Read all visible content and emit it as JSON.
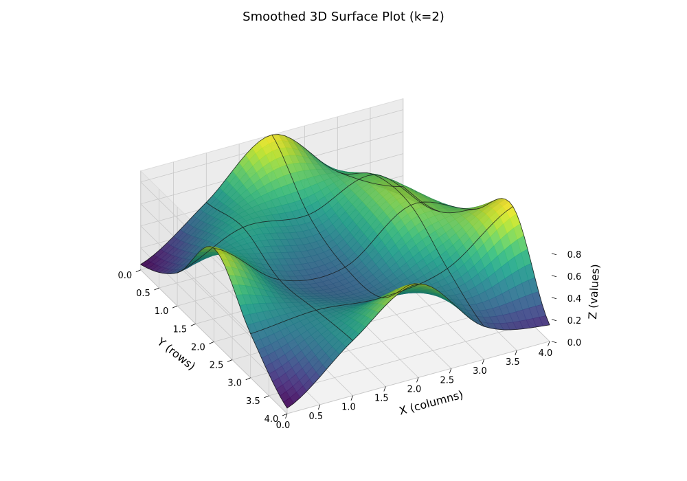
{
  "chart_data": {
    "type": "surface",
    "title": "Smoothed 3D Surface Plot (k=2)",
    "xlabel": "X (columns)",
    "ylabel": "Y (rows)",
    "zlabel": "Z (values)",
    "xlim": [
      0,
      4
    ],
    "ylim": [
      0,
      4
    ],
    "zlim": [
      0,
      0.9
    ],
    "x_ticks": [
      "0.0",
      "0.5",
      "1.0",
      "1.5",
      "2.0",
      "2.5",
      "3.0",
      "3.5",
      "4.0"
    ],
    "y_ticks": [
      "0.0",
      "0.5",
      "1.0",
      "1.5",
      "2.0",
      "2.5",
      "3.0",
      "3.5",
      "4.0"
    ],
    "z_ticks": [
      "0.0",
      "0.2",
      "0.4",
      "0.6",
      "0.8"
    ],
    "colormap": "viridis",
    "grid": true,
    "control_grid": {
      "x": [
        0,
        1,
        2,
        3,
        4
      ],
      "y": [
        0,
        1,
        2,
        3,
        4
      ],
      "z": [
        [
          0.05,
          0.45,
          0.9,
          0.4,
          0.1
        ],
        [
          0.3,
          0.55,
          0.5,
          0.7,
          0.2
        ],
        [
          0.85,
          0.4,
          0.35,
          0.75,
          0.55
        ],
        [
          0.4,
          0.45,
          0.4,
          0.5,
          0.9
        ],
        [
          0.05,
          0.5,
          0.85,
          0.3,
          0.15
        ]
      ]
    }
  }
}
